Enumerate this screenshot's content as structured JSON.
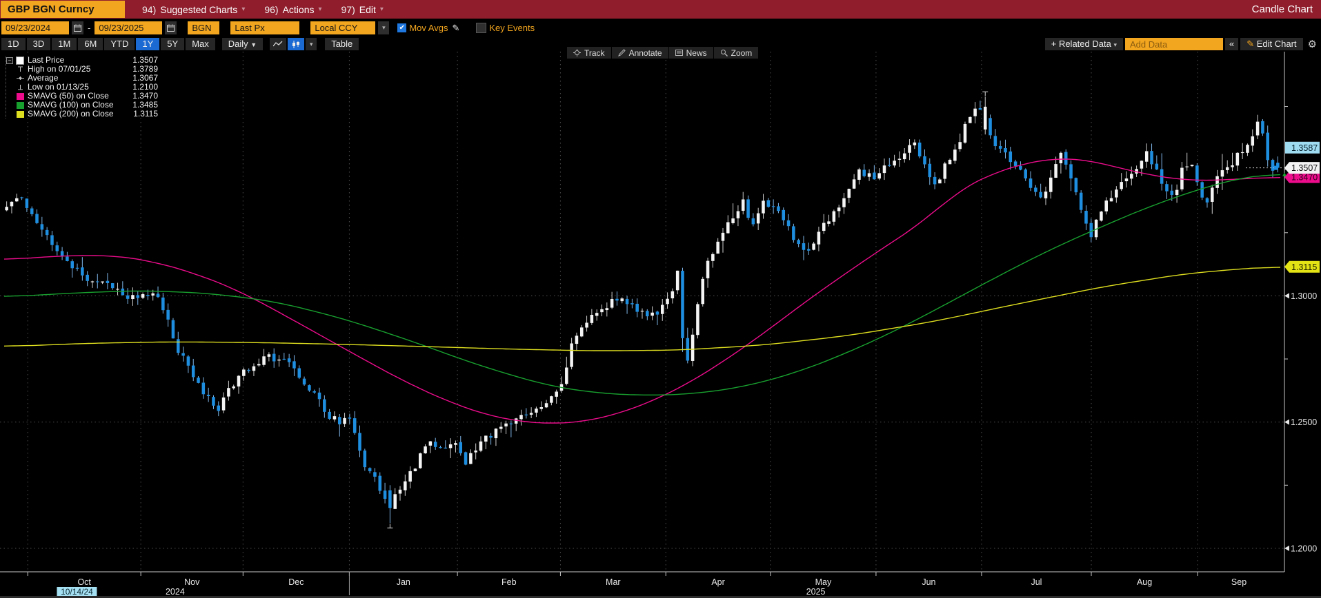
{
  "titlebar": {
    "instrument": "GBP BGN Curncy",
    "menus": [
      {
        "key": "94)",
        "label": "Suggested Charts"
      },
      {
        "key": "96)",
        "label": "Actions"
      },
      {
        "key": "97)",
        "label": "Edit"
      }
    ],
    "title": "Candle Chart"
  },
  "controls": {
    "date_from": "09/23/2024",
    "date_sep": "-",
    "date_to": "09/23/2025",
    "source": "BGN",
    "field": "Last Px",
    "currency": "Local CCY",
    "mov_avgs": {
      "label": "Mov Avgs",
      "checked": true
    },
    "key_events": {
      "label": "Key Events",
      "checked": false
    }
  },
  "toolbar": {
    "ranges": [
      "1D",
      "3D",
      "1M",
      "6M",
      "YTD",
      "1Y",
      "5Y",
      "Max"
    ],
    "selected_range": "1Y",
    "period": "Daily",
    "table_label": "Table",
    "related_data": "Related Data",
    "add_data_placeholder": "Add Data",
    "collapse": "«",
    "edit_chart": "Edit Chart"
  },
  "chart_toolbar": {
    "items": [
      {
        "icon": "crosshair-icon",
        "label": "Track"
      },
      {
        "icon": "pencil-icon",
        "label": "Annotate"
      },
      {
        "icon": "news-icon",
        "label": "News"
      },
      {
        "icon": "magnifier-icon",
        "label": "Zoom"
      }
    ]
  },
  "legend": {
    "rows": [
      {
        "marker": "price",
        "color": "#ffffff",
        "label": "Last Price",
        "value": "1.3507"
      },
      {
        "marker": "high",
        "color": "#bdbdbd",
        "label": "High on 07/01/25",
        "value": "1.3789"
      },
      {
        "marker": "avg",
        "color": "#bdbdbd",
        "label": "Average",
        "value": "1.3067"
      },
      {
        "marker": "low",
        "color": "#bdbdbd",
        "label": "Low on 01/13/25",
        "value": "1.2100"
      },
      {
        "marker": "sma",
        "color": "#ec0c8c",
        "label": "SMAVG (50)  on Close",
        "value": "1.3470"
      },
      {
        "marker": "sma",
        "color": "#18a02f",
        "label": "SMAVG (100)  on Close",
        "value": "1.3485"
      },
      {
        "marker": "sma",
        "color": "#dede20",
        "label": "SMAVG (200)  on Close",
        "value": "1.3115"
      }
    ]
  },
  "chart_data": {
    "type": "candlestick",
    "instrument": "GBP BGN Curncy",
    "period": "Daily",
    "range": "1Y",
    "y_axis": {
      "min": 1.1907,
      "max": 1.3967,
      "major_ticks": [
        {
          "label": "1.3000",
          "value": 1.3
        },
        {
          "label": "1.2500",
          "value": 1.25
        },
        {
          "label": "1.2000",
          "value": 1.2
        }
      ],
      "minor_tick_values": [
        1.375,
        1.35,
        1.325,
        1.275,
        1.225
      ]
    },
    "x_axis": {
      "month_labels": [
        "Oct",
        "Nov",
        "Dec",
        "Jan",
        "Feb",
        "Mar",
        "Apr",
        "May",
        "Jun",
        "Jul",
        "Aug",
        "Sep"
      ],
      "month_boundaries_t": [
        0.0185,
        0.1071,
        0.1872,
        0.2705,
        0.3552,
        0.4359,
        0.5185,
        0.6005,
        0.6832,
        0.7659,
        0.8519,
        0.9352
      ],
      "year_divider_t": 0.2705,
      "year_labels": [
        {
          "label": "2024",
          "t": 0.134
        },
        {
          "label": "2025",
          "t": 0.636
        }
      ],
      "highlight_date": {
        "label": "10/14/24",
        "t": 0.057
      }
    },
    "price_tags": [
      {
        "label": "1.3587",
        "value": 1.3587,
        "bg": "#9fdcf2",
        "fg": "#06222e",
        "pointed": false
      },
      {
        "label": "1.3470",
        "value": 1.347,
        "bg": "#ec0c8c",
        "fg": "#2a0018",
        "pointed": true
      },
      {
        "label": "1.3507",
        "value": 1.3507,
        "bg": "#f2f2f2",
        "fg": "#111111",
        "pointed": true
      },
      {
        "label": "1.3115",
        "value": 1.3115,
        "bg": "#e3e316",
        "fg": "#222200",
        "pointed": true
      }
    ],
    "last_price": {
      "value": 1.3507,
      "t": 1.0
    },
    "high_marker": {
      "value": 1.3789,
      "t": 0.7679,
      "date": "07/01/25"
    },
    "low_marker": {
      "value": 1.21,
      "t": 0.3016,
      "date": "01/13/25"
    },
    "average": 1.3067,
    "num_candles": 253,
    "seed": 77,
    "noise": 0.0017,
    "wick": 0.0031,
    "colors": {
      "up": "#f4f4f4",
      "down": "#1e8fe0",
      "up_wick": "#cfcfcf",
      "down_wick": "#7fb6e8",
      "grid": "#555555",
      "vgrid": "#4c4c4c",
      "axis": "#c8c8c8",
      "sma50": "#ec0c8c",
      "sma100": "#18a02f",
      "sma200": "#dede20",
      "marker": "#dcdcdc",
      "label": "#e8e8e8",
      "highlight_bg": "#a5dff2",
      "highlight_fg": "#08262e",
      "last_dot": "#cfcfcf",
      "last_square": "#1e8fe0",
      "arrow_up": "#17a82e"
    },
    "close_anchors": [
      [
        0.0033,
        1.3355
      ],
      [
        0.0099,
        1.34
      ],
      [
        0.0146,
        1.337
      ],
      [
        0.0198,
        1.332
      ],
      [
        0.0331,
        1.322
      ],
      [
        0.0463,
        1.314
      ],
      [
        0.0595,
        1.308
      ],
      [
        0.0728,
        1.3065
      ],
      [
        0.086,
        1.302
      ],
      [
        0.0992,
        1.2995
      ],
      [
        0.1157,
        1.301
      ],
      [
        0.1257,
        1.292
      ],
      [
        0.1356,
        1.278
      ],
      [
        0.1455,
        1.268
      ],
      [
        0.1554,
        1.262
      ],
      [
        0.1653,
        1.2545
      ],
      [
        0.1753,
        1.2625
      ],
      [
        0.1852,
        1.27
      ],
      [
        0.1951,
        1.273
      ],
      [
        0.205,
        1.276
      ],
      [
        0.2149,
        1.275
      ],
      [
        0.2249,
        1.271
      ],
      [
        0.2348,
        1.266
      ],
      [
        0.2447,
        1.259
      ],
      [
        0.2526,
        1.251
      ],
      [
        0.2612,
        1.2505
      ],
      [
        0.2705,
        1.252
      ],
      [
        0.2758,
        1.24
      ],
      [
        0.2824,
        1.233
      ],
      [
        0.2897,
        1.227
      ],
      [
        0.2963,
        1.221
      ],
      [
        0.3016,
        1.2155
      ],
      [
        0.3082,
        1.223
      ],
      [
        0.3161,
        1.2285
      ],
      [
        0.3254,
        1.236
      ],
      [
        0.334,
        1.243
      ],
      [
        0.3439,
        1.2395
      ],
      [
        0.3538,
        1.242
      ],
      [
        0.3611,
        1.233
      ],
      [
        0.369,
        1.24
      ],
      [
        0.3783,
        1.244
      ],
      [
        0.3876,
        1.2465
      ],
      [
        0.3968,
        1.249
      ],
      [
        0.4067,
        1.252
      ],
      [
        0.4167,
        1.256
      ],
      [
        0.4266,
        1.2595
      ],
      [
        0.4339,
        1.261
      ],
      [
        0.4398,
        1.272
      ],
      [
        0.4464,
        1.284
      ],
      [
        0.455,
        1.29
      ],
      [
        0.463,
        1.293
      ],
      [
        0.4709,
        1.296
      ],
      [
        0.4788,
        1.3
      ],
      [
        0.4868,
        1.2975
      ],
      [
        0.496,
        1.294
      ],
      [
        0.506,
        1.292
      ],
      [
        0.5146,
        1.2945
      ],
      [
        0.5212,
        1.298
      ],
      [
        0.5258,
        1.306
      ],
      [
        0.5284,
        1.309
      ],
      [
        0.5317,
        1.282
      ],
      [
        0.535,
        1.273
      ],
      [
        0.5383,
        1.281
      ],
      [
        0.5417,
        1.292
      ],
      [
        0.545,
        1.301
      ],
      [
        0.5483,
        1.308
      ],
      [
        0.5522,
        1.314
      ],
      [
        0.5562,
        1.319
      ],
      [
        0.5608,
        1.324
      ],
      [
        0.5655,
        1.328
      ],
      [
        0.5701,
        1.331
      ],
      [
        0.5747,
        1.334
      ],
      [
        0.5794,
        1.337
      ],
      [
        0.584,
        1.33
      ],
      [
        0.5886,
        1.327
      ],
      [
        0.5939,
        1.341
      ],
      [
        0.5985,
        1.335
      ],
      [
        0.6052,
        1.333
      ],
      [
        0.6118,
        1.33
      ],
      [
        0.6184,
        1.324
      ],
      [
        0.625,
        1.32
      ],
      [
        0.6316,
        1.318
      ],
      [
        0.6382,
        1.324
      ],
      [
        0.6448,
        1.329
      ],
      [
        0.6514,
        1.333
      ],
      [
        0.6581,
        1.338
      ],
      [
        0.6647,
        1.344
      ],
      [
        0.67,
        1.352
      ],
      [
        0.6759,
        1.348
      ],
      [
        0.6825,
        1.346
      ],
      [
        0.6878,
        1.35
      ],
      [
        0.6944,
        1.353
      ],
      [
        0.7011,
        1.355
      ],
      [
        0.7077,
        1.357
      ],
      [
        0.7143,
        1.361
      ],
      [
        0.7209,
        1.354
      ],
      [
        0.7262,
        1.347
      ],
      [
        0.7315,
        1.344
      ],
      [
        0.7368,
        1.35
      ],
      [
        0.7421,
        1.354
      ],
      [
        0.7474,
        1.359
      ],
      [
        0.7526,
        1.365
      ],
      [
        0.7579,
        1.371
      ],
      [
        0.7632,
        1.374
      ],
      [
        0.7679,
        1.3742
      ],
      [
        0.7738,
        1.364
      ],
      [
        0.7804,
        1.359
      ],
      [
        0.787,
        1.356
      ],
      [
        0.7937,
        1.352
      ],
      [
        0.8003,
        1.346
      ],
      [
        0.8069,
        1.342
      ],
      [
        0.8135,
        1.34
      ],
      [
        0.8201,
        1.344
      ],
      [
        0.8267,
        1.356
      ],
      [
        0.832,
        1.354
      ],
      [
        0.8373,
        1.348
      ],
      [
        0.8426,
        1.34
      ],
      [
        0.8479,
        1.33
      ],
      [
        0.8519,
        1.322
      ],
      [
        0.8565,
        1.33
      ],
      [
        0.8631,
        1.335
      ],
      [
        0.8697,
        1.34
      ],
      [
        0.8763,
        1.344
      ],
      [
        0.8829,
        1.348
      ],
      [
        0.8896,
        1.352
      ],
      [
        0.8962,
        1.356
      ],
      [
        0.9028,
        1.352
      ],
      [
        0.9094,
        1.345
      ],
      [
        0.916,
        1.34
      ],
      [
        0.9213,
        1.343
      ],
      [
        0.9259,
        1.352
      ],
      [
        0.9305,
        1.35
      ],
      [
        0.9345,
        1.351
      ],
      [
        0.9385,
        1.34
      ],
      [
        0.9431,
        1.336
      ],
      [
        0.9484,
        1.342
      ],
      [
        0.9537,
        1.347
      ],
      [
        0.959,
        1.35
      ],
      [
        0.9643,
        1.352
      ],
      [
        0.9696,
        1.356
      ],
      [
        0.9749,
        1.359
      ],
      [
        0.9802,
        1.364
      ],
      [
        0.9848,
        1.369
      ],
      [
        0.9888,
        1.362
      ],
      [
        0.9927,
        1.354
      ],
      [
        0.996,
        1.348
      ],
      [
        1.0,
        1.3507
      ]
    ],
    "sma": [
      {
        "name": "SMAVG (50) on Close",
        "color_key": "sma50",
        "last": 1.347,
        "anchors": [
          [
            0,
            1.3141
          ],
          [
            0.04,
            1.3158
          ],
          [
            0.086,
            1.3161
          ],
          [
            0.119,
            1.3134
          ],
          [
            0.152,
            1.3085
          ],
          [
            0.185,
            1.3018
          ],
          [
            0.218,
            1.2928
          ],
          [
            0.251,
            1.2835
          ],
          [
            0.284,
            1.2742
          ],
          [
            0.317,
            1.2652
          ],
          [
            0.351,
            1.2575
          ],
          [
            0.377,
            1.2529
          ],
          [
            0.403,
            1.2502
          ],
          [
            0.43,
            1.2492
          ],
          [
            0.456,
            1.2502
          ],
          [
            0.483,
            1.2535
          ],
          [
            0.509,
            1.2585
          ],
          [
            0.536,
            1.2652
          ],
          [
            0.562,
            1.2735
          ],
          [
            0.589,
            1.2828
          ],
          [
            0.615,
            1.2928
          ],
          [
            0.642,
            1.3028
          ],
          [
            0.668,
            1.3118
          ],
          [
            0.694,
            1.3208
          ],
          [
            0.721,
            1.3294
          ],
          [
            0.747,
            1.3417
          ],
          [
            0.774,
            1.3484
          ],
          [
            0.8,
            1.3527
          ],
          [
            0.827,
            1.3547
          ],
          [
            0.847,
            1.3541
          ],
          [
            0.866,
            1.3517
          ],
          [
            0.886,
            1.3491
          ],
          [
            0.906,
            1.3471
          ],
          [
            0.926,
            1.3457
          ],
          [
            0.952,
            1.3457
          ],
          [
            0.979,
            1.3467
          ],
          [
            1.0,
            1.347
          ]
        ]
      },
      {
        "name": "SMAVG (100) on Close",
        "color_key": "sma100",
        "last": 1.3485,
        "anchors": [
          [
            0,
            1.2995
          ],
          [
            0.053,
            1.3011
          ],
          [
            0.106,
            1.3021
          ],
          [
            0.159,
            1.3011
          ],
          [
            0.212,
            1.2978
          ],
          [
            0.265,
            1.2911
          ],
          [
            0.317,
            1.2825
          ],
          [
            0.37,
            1.2728
          ],
          [
            0.423,
            1.2648
          ],
          [
            0.463,
            1.2615
          ],
          [
            0.503,
            1.2605
          ],
          [
            0.542,
            1.2612
          ],
          [
            0.582,
            1.2642
          ],
          [
            0.622,
            1.2698
          ],
          [
            0.661,
            1.2775
          ],
          [
            0.701,
            1.2868
          ],
          [
            0.741,
            1.2975
          ],
          [
            0.78,
            1.3081
          ],
          [
            0.82,
            1.3184
          ],
          [
            0.86,
            1.3274
          ],
          [
            0.899,
            1.3357
          ],
          [
            0.939,
            1.3427
          ],
          [
            0.972,
            1.3471
          ],
          [
            1.0,
            1.3485
          ]
        ]
      },
      {
        "name": "SMAVG (200) on Close",
        "color_key": "sma200",
        "last": 1.3115,
        "anchors": [
          [
            0,
            1.2799
          ],
          [
            0.066,
            1.2812
          ],
          [
            0.132,
            1.2818
          ],
          [
            0.198,
            1.2815
          ],
          [
            0.265,
            1.2808
          ],
          [
            0.331,
            1.2799
          ],
          [
            0.397,
            1.2789
          ],
          [
            0.463,
            1.2782
          ],
          [
            0.529,
            1.2785
          ],
          [
            0.595,
            1.2805
          ],
          [
            0.661,
            1.2842
          ],
          [
            0.728,
            1.2898
          ],
          [
            0.794,
            1.2968
          ],
          [
            0.86,
            1.3035
          ],
          [
            0.926,
            1.3088
          ],
          [
            0.979,
            1.3111
          ],
          [
            1.0,
            1.3115
          ]
        ]
      }
    ]
  }
}
